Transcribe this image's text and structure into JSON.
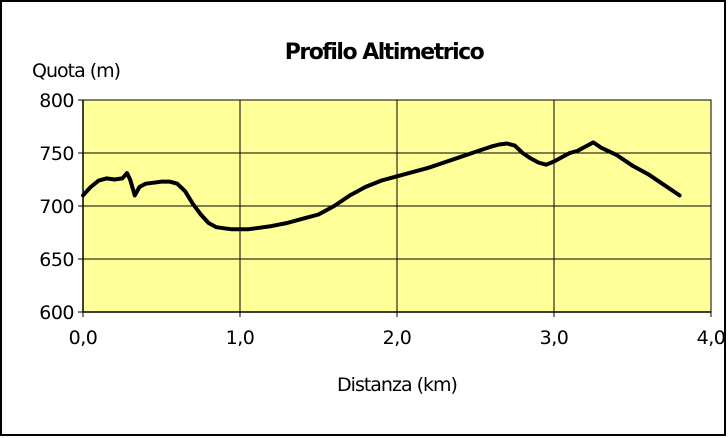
{
  "chart_data": {
    "type": "line",
    "title": "Profilo Altimetrico",
    "ylabel": "Quota (m)",
    "xlabel": "Distanza (km)",
    "xlim": [
      0,
      4
    ],
    "ylim": [
      600,
      800
    ],
    "xticks": [
      0,
      1,
      2,
      3,
      4
    ],
    "xtick_labels": [
      "0,0",
      "1,0",
      "2,0",
      "3,0",
      "4,0"
    ],
    "yticks": [
      600,
      650,
      700,
      750,
      800
    ],
    "ytick_labels": [
      "600",
      "650",
      "700",
      "750",
      "800"
    ],
    "grid": true,
    "plot_background": "#ffff99",
    "line_color": "#000000",
    "series": [
      {
        "x": [
          0.0,
          0.05,
          0.1,
          0.15,
          0.2,
          0.25,
          0.28,
          0.3,
          0.33,
          0.36,
          0.4,
          0.45,
          0.5,
          0.55,
          0.6,
          0.65,
          0.7,
          0.75,
          0.8,
          0.85,
          0.9,
          0.95,
          1.0,
          1.05,
          1.1,
          1.2,
          1.3,
          1.4,
          1.5,
          1.6,
          1.7,
          1.8,
          1.9,
          2.0,
          2.1,
          2.2,
          2.3,
          2.4,
          2.5,
          2.6,
          2.65,
          2.7,
          2.75,
          2.8,
          2.85,
          2.9,
          2.95,
          3.0,
          3.05,
          3.1,
          3.15,
          3.2,
          3.25,
          3.3,
          3.4,
          3.5,
          3.6,
          3.7,
          3.8
        ],
        "y": [
          710,
          718,
          724,
          726,
          725,
          726,
          731,
          725,
          710,
          718,
          721,
          722,
          723,
          723,
          721,
          714,
          702,
          692,
          684,
          680,
          679,
          678,
          678,
          678,
          679,
          681,
          684,
          688,
          692,
          700,
          710,
          718,
          724,
          728,
          732,
          736,
          741,
          746,
          751,
          756,
          758,
          759,
          757,
          750,
          745,
          741,
          739,
          742,
          746,
          750,
          752,
          756,
          760,
          755,
          748,
          738,
          730,
          720,
          710
        ]
      }
    ]
  }
}
